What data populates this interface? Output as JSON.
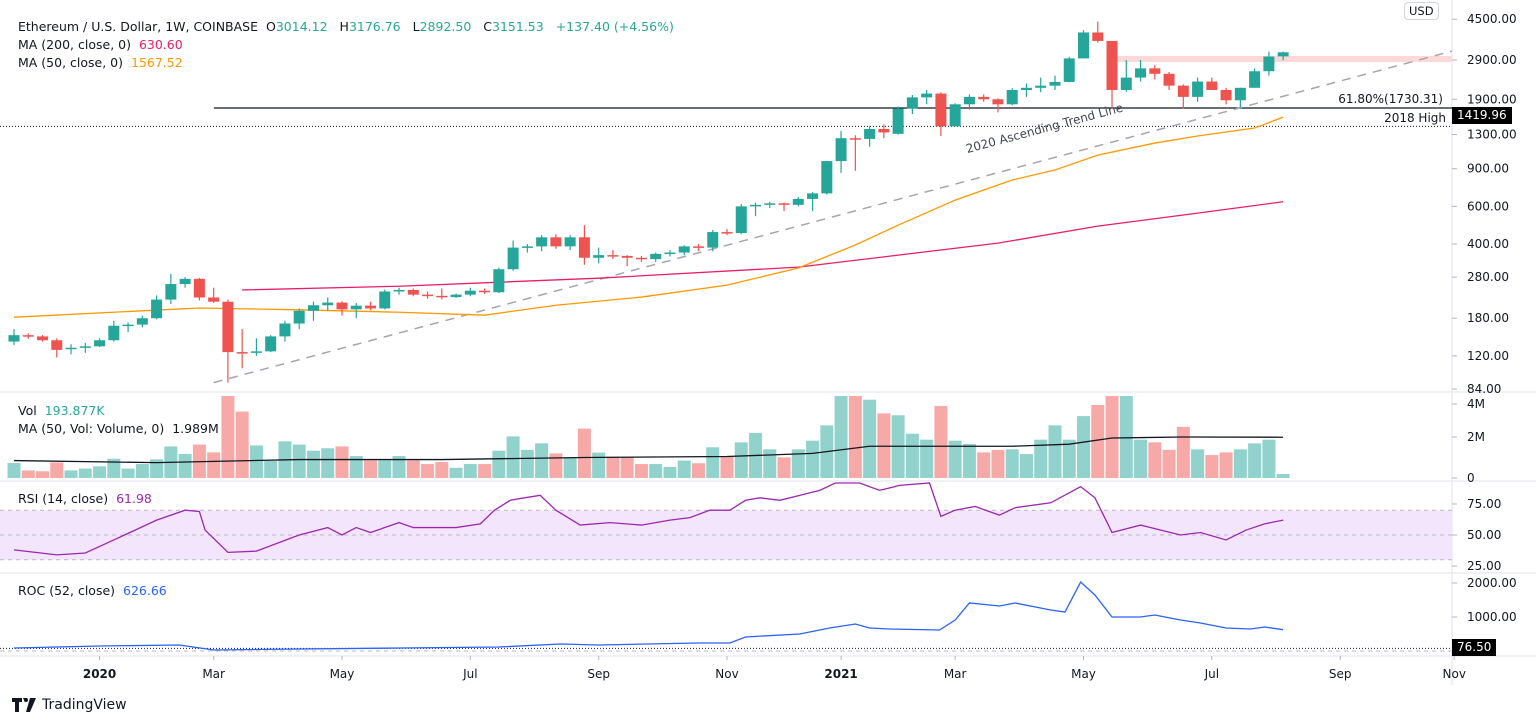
{
  "header": {
    "symbol": "Ethereum / U.S. Dollar, 1W, COINBASE",
    "o_label": "O",
    "o": "3014.12",
    "h_label": "H",
    "h": "3176.76",
    "l_label": "L",
    "l": "2892.50",
    "c_label": "C",
    "c": "3151.53",
    "change": "+137.40 (+4.56%)",
    "ma200_label": "MA (200, close, 0)",
    "ma200_value": "630.60",
    "ma50_label": "MA (50, close, 0)",
    "ma50_value": "1567.52"
  },
  "volume_legend": {
    "label": "Vol",
    "value": "193.877K",
    "ma_label": "MA (50, Vol: Volume, 0)",
    "ma_value": "1.989M"
  },
  "rsi_legend": {
    "label": "RSI (14, close)",
    "value": "61.98"
  },
  "roc_legend": {
    "label": "ROC (52, close)",
    "value": "626.66"
  },
  "currency": "USD",
  "price_tag": "1419.96",
  "roc_tag": "76.50",
  "annotations": {
    "fib": "61.80%(1730.31)",
    "high2018": "2018 High",
    "trend": "2020 Ascending Trend Line"
  },
  "footer": {
    "brand": "TradingView"
  },
  "colors": {
    "up": "#26a69a",
    "down": "#ef5350",
    "vol_up": "#92d2cc",
    "vol_down": "#f7a9a7",
    "ma50": "#ff9800",
    "ma200": "#e91e63",
    "rsi": "#9c27b0",
    "roc": "#2962ff",
    "zone": "#fdd8d8",
    "rsi_band": "#f3e5fc"
  },
  "chart_data": [
    {
      "type": "candlestick",
      "scale": "log",
      "y_ticks": [
        "4500.00",
        "2900.00",
        "1900.00",
        "1300.00",
        "900.00",
        "600.00",
        "400.00",
        "280.00",
        "180.00",
        "120.00",
        "84.00"
      ],
      "x_ticks": [
        {
          "label": "2020",
          "bar": 6,
          "bold": true
        },
        {
          "label": "Mar",
          "bar": 14
        },
        {
          "label": "May",
          "bar": 23
        },
        {
          "label": "Jul",
          "bar": 32
        },
        {
          "label": "Sep",
          "bar": 41
        },
        {
          "label": "Nov",
          "bar": 50
        },
        {
          "label": "2021",
          "bar": 58,
          "bold": true
        },
        {
          "label": "Mar",
          "bar": 66
        },
        {
          "label": "May",
          "bar": 75
        },
        {
          "label": "Jul",
          "bar": 84
        },
        {
          "label": "Sep",
          "bar": 93
        },
        {
          "label": "Nov",
          "bar": 101
        }
      ],
      "candles": [
        [
          140,
          160,
          135,
          150
        ],
        [
          150,
          153,
          144,
          148
        ],
        [
          148,
          150,
          140,
          142
        ],
        [
          142,
          145,
          118,
          128
        ],
        [
          129,
          136,
          122,
          131
        ],
        [
          131,
          138,
          124,
          133
        ],
        [
          133,
          145,
          132,
          142
        ],
        [
          142,
          175,
          140,
          166
        ],
        [
          166,
          172,
          155,
          168
        ],
        [
          168,
          185,
          163,
          180
        ],
        [
          180,
          230,
          178,
          220
        ],
        [
          220,
          290,
          210,
          260
        ],
        [
          260,
          280,
          250,
          275
        ],
        [
          275,
          278,
          218,
          225
        ],
        [
          225,
          250,
          212,
          215
        ],
        [
          215,
          220,
          90,
          125
        ],
        [
          125,
          160,
          105,
          124
        ],
        [
          124,
          145,
          120,
          126
        ],
        [
          126,
          150,
          125,
          148
        ],
        [
          148,
          175,
          140,
          170
        ],
        [
          170,
          200,
          160,
          195
        ],
        [
          195,
          215,
          175,
          207
        ],
        [
          207,
          225,
          195,
          213
        ],
        [
          213,
          216,
          185,
          198
        ],
        [
          198,
          212,
          180,
          206
        ],
        [
          206,
          215,
          196,
          200
        ],
        [
          200,
          245,
          198,
          240
        ],
        [
          240,
          250,
          232,
          244
        ],
        [
          244,
          248,
          228,
          232
        ],
        [
          232,
          240,
          222,
          229
        ],
        [
          229,
          248,
          220,
          226
        ],
        [
          226,
          235,
          224,
          232
        ],
        [
          232,
          250,
          228,
          242
        ],
        [
          242,
          248,
          234,
          238
        ],
        [
          238,
          310,
          236,
          305
        ],
        [
          305,
          415,
          300,
          385
        ],
        [
          385,
          400,
          365,
          390
        ],
        [
          390,
          440,
          370,
          430
        ],
        [
          430,
          445,
          380,
          390
        ],
        [
          390,
          440,
          375,
          430
        ],
        [
          430,
          490,
          320,
          345
        ],
        [
          345,
          385,
          325,
          355
        ],
        [
          355,
          375,
          340,
          352
        ],
        [
          352,
          355,
          315,
          345
        ],
        [
          345,
          352,
          330,
          340
        ],
        [
          340,
          365,
          330,
          360
        ],
        [
          360,
          375,
          350,
          365
        ],
        [
          365,
          395,
          355,
          390
        ],
        [
          390,
          400,
          370,
          385
        ],
        [
          385,
          465,
          370,
          455
        ],
        [
          455,
          470,
          440,
          450
        ],
        [
          450,
          615,
          445,
          600
        ],
        [
          600,
          625,
          540,
          610
        ],
        [
          610,
          630,
          590,
          620
        ],
        [
          620,
          625,
          570,
          610
        ],
        [
          610,
          665,
          600,
          650
        ],
        [
          650,
          700,
          570,
          690
        ],
        [
          690,
          980,
          680,
          977
        ],
        [
          977,
          1350,
          860,
          1250
        ],
        [
          1250,
          1290,
          880,
          1240
        ],
        [
          1240,
          1420,
          1140,
          1380
        ],
        [
          1380,
          1450,
          1250,
          1330
        ],
        [
          1310,
          1760,
          1300,
          1720
        ],
        [
          1720,
          1990,
          1620,
          1940
        ],
        [
          1940,
          2100,
          1800,
          2020
        ],
        [
          2020,
          2050,
          1280,
          1420
        ],
        [
          1420,
          1820,
          1420,
          1800
        ],
        [
          1800,
          2000,
          1700,
          1950
        ],
        [
          1950,
          2000,
          1850,
          1900
        ],
        [
          1900,
          1920,
          1650,
          1800
        ],
        [
          1800,
          2140,
          1780,
          2100
        ],
        [
          2100,
          2250,
          1950,
          2150
        ],
        [
          2150,
          2400,
          2050,
          2200
        ],
        [
          2200,
          2450,
          2100,
          2290
        ],
        [
          2290,
          3000,
          2280,
          2950
        ],
        [
          2950,
          4000,
          2950,
          3900
        ],
        [
          3900,
          4380,
          3500,
          3560
        ],
        [
          3560,
          3560,
          1720,
          2100
        ],
        [
          2100,
          2900,
          2060,
          2400
        ],
        [
          2400,
          2900,
          2300,
          2650
        ],
        [
          2650,
          2750,
          2350,
          2500
        ],
        [
          2500,
          2550,
          2100,
          2200
        ],
        [
          2200,
          2230,
          1720,
          1950
        ],
        [
          1950,
          2400,
          1850,
          2300
        ],
        [
          2300,
          2400,
          2100,
          2100
        ],
        [
          2100,
          2150,
          1800,
          1880
        ],
        [
          1880,
          2150,
          1720,
          2150
        ],
        [
          2150,
          2650,
          2150,
          2570
        ],
        [
          2570,
          3170,
          2450,
          3010
        ],
        [
          3014.12,
          3176.76,
          2892.5,
          3151.53
        ]
      ],
      "ma50": [
        [
          0,
          182
        ],
        [
          13,
          201
        ],
        [
          20,
          197
        ],
        [
          27,
          192
        ],
        [
          33,
          186
        ],
        [
          38,
          207
        ],
        [
          44,
          226
        ],
        [
          50,
          257
        ],
        [
          55,
          309
        ],
        [
          59,
          396
        ],
        [
          62,
          490
        ],
        [
          66,
          642
        ],
        [
          70,
          797
        ],
        [
          73,
          887
        ],
        [
          76,
          1042
        ],
        [
          80,
          1186
        ],
        [
          83,
          1280
        ],
        [
          87,
          1394
        ],
        [
          89,
          1567.52
        ]
      ],
      "ma200": [
        [
          16,
          244
        ],
        [
          27,
          254
        ],
        [
          41,
          277
        ],
        [
          55,
          312
        ],
        [
          62,
          355
        ],
        [
          69,
          404
        ],
        [
          76,
          485
        ],
        [
          83,
          558
        ],
        [
          89,
          630.6
        ]
      ],
      "trend_line": {
        "from": [
          14,
          90
        ],
        "to": [
          89,
          1962
        ]
      },
      "levels": [
        {
          "price": 1730.31,
          "from_bar": 15,
          "style": "solid"
        },
        {
          "price": 1419.96,
          "from_bar": 0,
          "style": "dotted"
        }
      ],
      "resistance_zone": {
        "low": 2840,
        "high": 3030,
        "from_bar": 77
      }
    },
    {
      "type": "bar",
      "y_ticks": [
        {
          "label": "4M",
          "value": 4
        },
        {
          "label": "2M",
          "value": 2
        },
        {
          "label": "0",
          "value": 0
        }
      ],
      "unit": "M",
      "values": [
        0.73,
        0.37,
        0.33,
        0.76,
        0.37,
        0.46,
        0.57,
        0.94,
        0.46,
        0.68,
        0.91,
        1.54,
        1.17,
        1.63,
        1.25,
        4.6,
        3.24,
        1.59,
        0.83,
        1.79,
        1.63,
        1.33,
        1.45,
        1.54,
        1.07,
        0.86,
        0.86,
        1.07,
        0.86,
        0.68,
        0.78,
        0.5,
        0.68,
        0.68,
        1.33,
        2.03,
        1.37,
        1.69,
        1.2,
        0.99,
        2.41,
        1.24,
        1.04,
        1.02,
        0.68,
        0.68,
        0.54,
        0.85,
        0.72,
        1.5,
        1.04,
        1.74,
        2.2,
        1.4,
        1.01,
        1.4,
        1.82,
        2.57,
        4.6,
        5.2,
        3.82,
        3.15,
        3.06,
        2.16,
        1.87,
        3.51,
        1.82,
        1.66,
        1.25,
        1.37,
        1.4,
        1.17,
        1.87,
        2.57,
        1.87,
        3.02,
        3.56,
        4.5,
        4.0,
        1.87,
        1.74,
        1.37,
        2.49,
        1.4,
        1.12,
        1.25,
        1.4,
        1.69,
        1.87,
        0.194
      ],
      "ma": [
        [
          0,
          0.85
        ],
        [
          10,
          0.75
        ],
        [
          20,
          0.9
        ],
        [
          30,
          0.9
        ],
        [
          40,
          1.0
        ],
        [
          50,
          1.05
        ],
        [
          56,
          1.2
        ],
        [
          60,
          1.55
        ],
        [
          65,
          1.55
        ],
        [
          70,
          1.55
        ],
        [
          74,
          1.65
        ],
        [
          77,
          1.95
        ],
        [
          82,
          2.0
        ],
        [
          89,
          1.989
        ]
      ]
    },
    {
      "type": "line",
      "y_ticks": [
        "75.00",
        "50.00",
        "25.00"
      ],
      "band": [
        30,
        70
      ],
      "points": [
        [
          0,
          38
        ],
        [
          3,
          34
        ],
        [
          5,
          35.5
        ],
        [
          7,
          46
        ],
        [
          10,
          62
        ],
        [
          12,
          70
        ],
        [
          13,
          69
        ],
        [
          13.4,
          54
        ],
        [
          15,
          36
        ],
        [
          17,
          37
        ],
        [
          20,
          50
        ],
        [
          22,
          56
        ],
        [
          23,
          50
        ],
        [
          24,
          56
        ],
        [
          25,
          52
        ],
        [
          27,
          60
        ],
        [
          28,
          56
        ],
        [
          31,
          56
        ],
        [
          32.7,
          59
        ],
        [
          33.7,
          70
        ],
        [
          34.8,
          78
        ],
        [
          35.8,
          80
        ],
        [
          36.9,
          82
        ],
        [
          38,
          70
        ],
        [
          39.7,
          58
        ],
        [
          41.8,
          60
        ],
        [
          44,
          58
        ],
        [
          46,
          62
        ],
        [
          47.4,
          64
        ],
        [
          48.8,
          70
        ],
        [
          50.2,
          70
        ],
        [
          51.3,
          78
        ],
        [
          52.3,
          80
        ],
        [
          53.7,
          78
        ],
        [
          55.1,
          82
        ],
        [
          56.5,
          86
        ],
        [
          57.6,
          93
        ],
        [
          59.3,
          92
        ],
        [
          60.7,
          86
        ],
        [
          62.1,
          90
        ],
        [
          64.2,
          92
        ],
        [
          65,
          65
        ],
        [
          66,
          70
        ],
        [
          67.4,
          73
        ],
        [
          69.1,
          66
        ],
        [
          70.2,
          72
        ],
        [
          72.7,
          76
        ],
        [
          74.8,
          89
        ],
        [
          75.8,
          80
        ],
        [
          77,
          52
        ],
        [
          79,
          58
        ],
        [
          81.8,
          50
        ],
        [
          83.2,
          52
        ],
        [
          85,
          46
        ],
        [
          86.4,
          54
        ],
        [
          87.7,
          59
        ],
        [
          89,
          61.98
        ]
      ]
    },
    {
      "type": "line",
      "y_ticks": [
        "2000.00",
        "1000.00"
      ],
      "reference": 76.5,
      "points": [
        [
          0,
          88
        ],
        [
          6,
          147
        ],
        [
          11.6,
          176
        ],
        [
          14,
          29
        ],
        [
          20,
          59
        ],
        [
          27,
          88
        ],
        [
          34,
          118
        ],
        [
          38.3,
          206
        ],
        [
          41,
          176
        ],
        [
          48,
          235
        ],
        [
          50.2,
          235
        ],
        [
          51.3,
          412
        ],
        [
          55.1,
          500
        ],
        [
          57.2,
          676
        ],
        [
          59,
          794
        ],
        [
          60,
          676
        ],
        [
          61.4,
          647
        ],
        [
          64.9,
          618
        ],
        [
          66,
          912
        ],
        [
          67,
          1412
        ],
        [
          69.1,
          1324
        ],
        [
          70.2,
          1412
        ],
        [
          72.7,
          1206
        ],
        [
          73.7,
          1147
        ],
        [
          74.8,
          2029
        ],
        [
          75.8,
          1647
        ],
        [
          77,
          1000
        ],
        [
          79,
          1000
        ],
        [
          80,
          1059
        ],
        [
          81.8,
          912
        ],
        [
          83.2,
          824
        ],
        [
          85,
          676
        ],
        [
          86.7,
          647
        ],
        [
          87.7,
          706
        ],
        [
          89,
          626.66
        ]
      ]
    }
  ]
}
